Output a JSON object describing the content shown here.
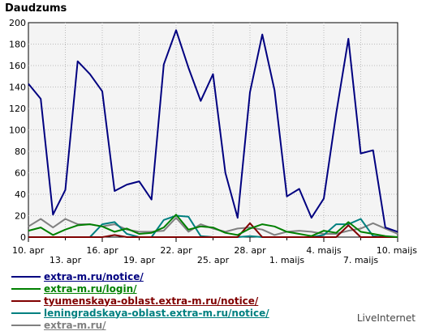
{
  "chart_data": {
    "type": "line",
    "title": "Daudzums",
    "ylim": [
      0,
      200
    ],
    "yticks": [
      0,
      20,
      40,
      60,
      80,
      100,
      120,
      140,
      160,
      180,
      200
    ],
    "x": [
      "10. apr",
      "11. apr",
      "12. apr",
      "13. apr",
      "14. apr",
      "15. apr",
      "16. apr",
      "17. apr",
      "18. apr",
      "19. apr",
      "20. apr",
      "21. apr",
      "22. apr",
      "23. apr",
      "24. apr",
      "25. apr",
      "26. apr",
      "27. apr",
      "28. apr",
      "29. apr",
      "30. apr",
      "1. maijs",
      "2. maijs",
      "3. maijs",
      "4. maijs",
      "5. maijs",
      "6. maijs",
      "7. maijs",
      "8. maijs",
      "9. maijs",
      "10. maijs"
    ],
    "xticks_row1": [
      "10. apr",
      "16. apr",
      "22. apr",
      "28. apr",
      "4. maijs",
      "10. maijs"
    ],
    "xticks_row2": [
      "13. apr",
      "19. apr",
      "25. apr",
      "1. maijs",
      "7. maijs"
    ],
    "grid": true,
    "series": [
      {
        "name": "extra-m.ru/notice/",
        "color": "#000080",
        "values": [
          143,
          129,
          21,
          44,
          164,
          152,
          136,
          43,
          49,
          52,
          35,
          161,
          193,
          158,
          127,
          152,
          60,
          18,
          135,
          189,
          137,
          38,
          45,
          18,
          36,
          115,
          185,
          78,
          81,
          9,
          5
        ]
      },
      {
        "name": "extra-m.ru/login/",
        "color": "#008000",
        "values": [
          6,
          9,
          2,
          7,
          11,
          12,
          10,
          5,
          8,
          3,
          4,
          9,
          21,
          7,
          10,
          9,
          4,
          2,
          8,
          12,
          10,
          5,
          3,
          1,
          6,
          4,
          14,
          5,
          3,
          1,
          0
        ]
      },
      {
        "name": "tyumenskaya-oblast.extra-m.ru/notice/",
        "color": "#800000",
        "values": [
          0,
          0,
          0,
          0,
          0,
          0,
          0,
          2,
          0,
          0,
          0,
          0,
          0,
          0,
          0,
          0,
          0,
          0,
          13,
          0,
          0,
          0,
          0,
          0,
          0,
          0,
          11,
          0,
          0,
          0,
          0
        ]
      },
      {
        "name": "leningradskaya-oblast.extra-m.ru/notice/",
        "color": "#008080",
        "values": [
          0,
          0,
          0,
          0,
          0,
          0,
          12,
          14,
          3,
          0,
          0,
          16,
          20,
          19,
          1,
          0,
          0,
          0,
          1,
          0,
          0,
          0,
          0,
          0,
          2,
          12,
          12,
          17,
          1,
          0,
          0
        ]
      },
      {
        "name": "extra-m.ru/",
        "color": "#808080",
        "values": [
          10,
          17,
          9,
          17,
          12,
          12,
          10,
          12,
          7,
          5,
          5,
          6,
          18,
          5,
          12,
          8,
          5,
          8,
          9,
          7,
          2,
          5,
          6,
          5,
          3,
          3,
          6,
          8,
          13,
          8,
          3
        ]
      }
    ]
  },
  "footer": {
    "brand": "LiveInternet"
  }
}
